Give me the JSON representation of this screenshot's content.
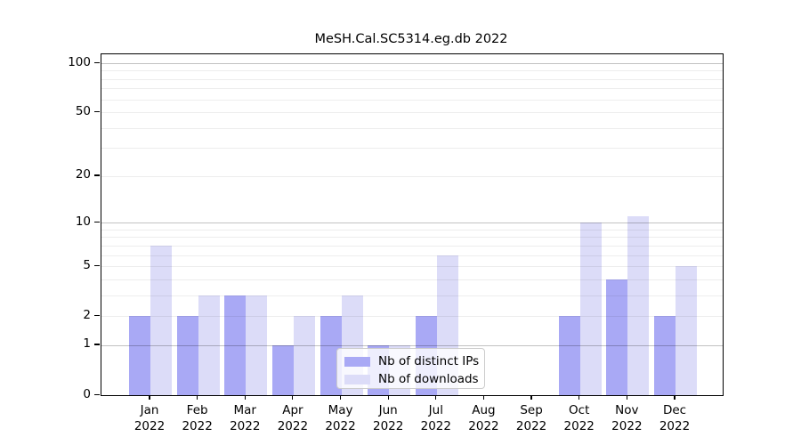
{
  "chart_data": {
    "type": "bar",
    "title": "MeSH.Cal.SC5314.eg.db 2022",
    "categories": [
      "Jan",
      "Feb",
      "Mar",
      "Apr",
      "May",
      "Jun",
      "Jul",
      "Aug",
      "Sep",
      "Oct",
      "Nov",
      "Dec"
    ],
    "year_label": "2022",
    "series": [
      {
        "name": "Nb of distinct IPs",
        "color": "#a9a9f5",
        "values": [
          2,
          2,
          3,
          1,
          2,
          1,
          2,
          0,
          0,
          2,
          4,
          2
        ]
      },
      {
        "name": "Nb of downloads",
        "color": "#dcdcf8",
        "values": [
          7,
          3,
          3,
          2,
          3,
          1,
          6,
          0,
          0,
          10,
          11,
          5
        ]
      }
    ],
    "yticks": [
      0,
      1,
      2,
      5,
      10,
      20,
      50,
      100
    ],
    "minor_gridline_values": [
      2,
      3,
      4,
      5,
      6,
      7,
      8,
      9,
      20,
      30,
      40,
      50,
      60,
      70,
      80,
      90
    ],
    "major_gridline_values": [
      1,
      10,
      100
    ],
    "scale": "log1p",
    "ylim": [
      0,
      100
    ],
    "xlabel": "",
    "ylabel": "",
    "grid": "both",
    "legend_position": "inside-lower-center"
  }
}
